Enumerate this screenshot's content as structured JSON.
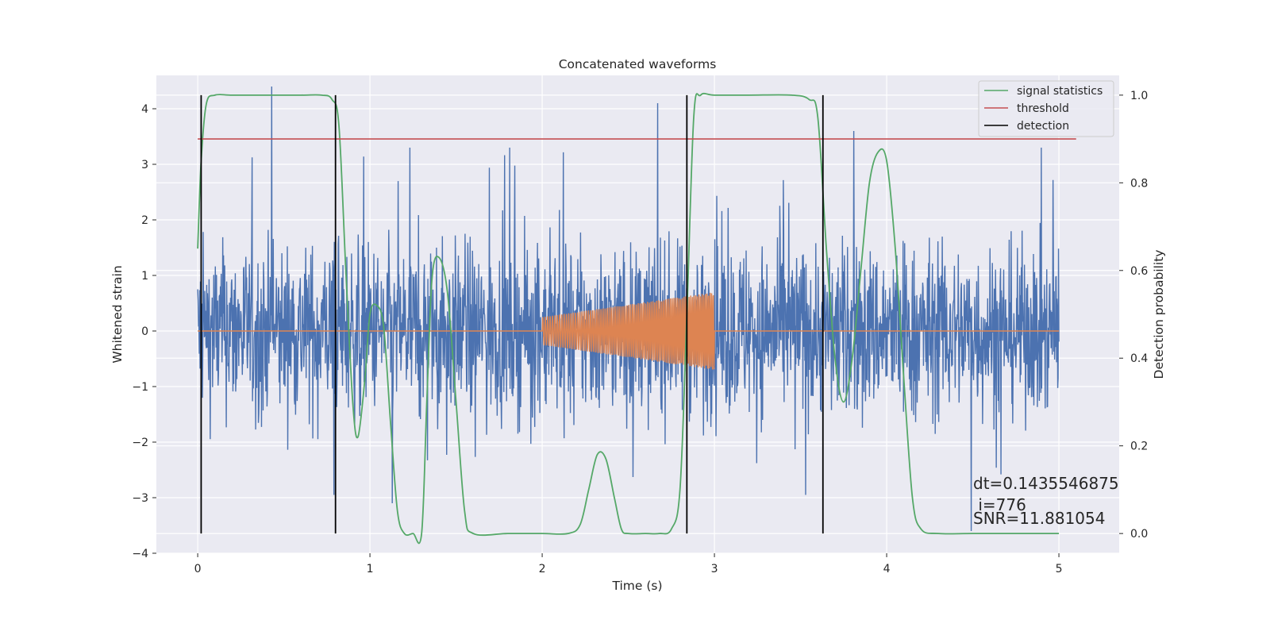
{
  "chart_data": {
    "type": "line",
    "title": "Concatenated waveforms",
    "xlabel": "Time (s)",
    "ylabel_left": "Whitened strain",
    "ylabel_right": "Detection probability",
    "xlim": [
      -0.24,
      5.35
    ],
    "ylim_left": [
      -4.0,
      4.6
    ],
    "ylim_right": [
      -0.045,
      1.045
    ],
    "xticks": [
      0,
      1,
      2,
      3,
      4,
      5
    ],
    "yticks_left": [
      -4,
      -3,
      -2,
      -1,
      0,
      1,
      2,
      3,
      4
    ],
    "yticks_right": [
      0.0,
      0.2,
      0.4,
      0.6,
      0.8,
      1.0
    ],
    "xtick_labels": [
      "0",
      "1",
      "2",
      "3",
      "4",
      "5"
    ],
    "ytick_labels_left": [
      "−4",
      "−3",
      "−2",
      "−1",
      "0",
      "1",
      "2",
      "3",
      "4"
    ],
    "ytick_labels_right": [
      "0.0",
      "0.2",
      "0.4",
      "0.6",
      "0.8",
      "1.0"
    ],
    "grid": true,
    "legend_position": "top-right",
    "legend": [
      "signal statistics",
      "threshold",
      "detection"
    ],
    "colors": {
      "strain": "#4c72b0",
      "template": "#dd8452",
      "signal_statistics": "#55a868",
      "threshold": "#c44e52",
      "detection": "#000000",
      "background": "#eaeaf2",
      "grid": "#ffffff"
    },
    "series": [
      {
        "name": "signal statistics",
        "axis": "right",
        "x": [
          0.0,
          0.02,
          0.05,
          0.1,
          0.2,
          0.4,
          0.6,
          0.72,
          0.78,
          0.82,
          0.86,
          0.9,
          0.93,
          0.97,
          1.0,
          1.04,
          1.08,
          1.12,
          1.16,
          1.2,
          1.25,
          1.3,
          1.33,
          1.36,
          1.4,
          1.45,
          1.5,
          1.55,
          1.6,
          1.8,
          2.0,
          2.15,
          2.22,
          2.27,
          2.32,
          2.37,
          2.42,
          2.46,
          2.5,
          2.6,
          2.68,
          2.75,
          2.8,
          2.84,
          2.88,
          2.92,
          3.0,
          3.2,
          3.45,
          3.55,
          3.6,
          3.65,
          3.7,
          3.75,
          3.8,
          3.85,
          3.9,
          3.95,
          4.0,
          4.05,
          4.1,
          4.15,
          4.2,
          4.3,
          4.5,
          4.8,
          5.0
        ],
        "values": [
          0.65,
          0.85,
          0.98,
          1.0,
          1.0,
          1.0,
          1.0,
          1.0,
          0.99,
          0.93,
          0.6,
          0.3,
          0.22,
          0.35,
          0.5,
          0.52,
          0.47,
          0.25,
          0.05,
          0.0,
          0.0,
          0.0,
          0.3,
          0.58,
          0.63,
          0.55,
          0.3,
          0.05,
          0.0,
          0.0,
          0.0,
          0.0,
          0.02,
          0.1,
          0.18,
          0.17,
          0.08,
          0.01,
          0.0,
          0.0,
          0.0,
          0.01,
          0.1,
          0.5,
          0.95,
          1.0,
          1.0,
          1.0,
          1.0,
          0.99,
          0.95,
          0.65,
          0.4,
          0.3,
          0.4,
          0.6,
          0.8,
          0.87,
          0.85,
          0.65,
          0.35,
          0.08,
          0.01,
          0.0,
          0.0,
          0.0,
          0.0
        ]
      },
      {
        "name": "threshold",
        "axis": "right",
        "x": [
          0.0,
          5.1
        ],
        "values": [
          0.9,
          0.9
        ]
      },
      {
        "name": "detection",
        "axis": "right",
        "x": [
          0.02,
          0.8,
          2.84,
          3.63
        ],
        "ymin": 0.0,
        "ymax": 1.0
      },
      {
        "name": "whitened strain",
        "axis": "left",
        "x_range": [
          0.0,
          5.0
        ],
        "amplitude_typical": 1.5,
        "amplitude_max": 4.4,
        "spikes": [
          {
            "x": 0.43,
            "y": 4.4
          },
          {
            "x": 2.67,
            "y": 4.1
          },
          {
            "x": 3.81,
            "y": 3.6
          },
          {
            "x": 4.49,
            "y": -3.6
          },
          {
            "x": 1.13,
            "y": -3.1
          },
          {
            "x": 0.79,
            "y": -2.95
          }
        ]
      },
      {
        "name": "template waveform",
        "axis": "left",
        "x_range": [
          2.0,
          3.0
        ],
        "amplitude_start": 0.25,
        "amplitude_end": 0.7
      }
    ],
    "annotations": [
      "dt=0.1435546875",
      " i=776",
      "SNR=11.881054"
    ]
  }
}
